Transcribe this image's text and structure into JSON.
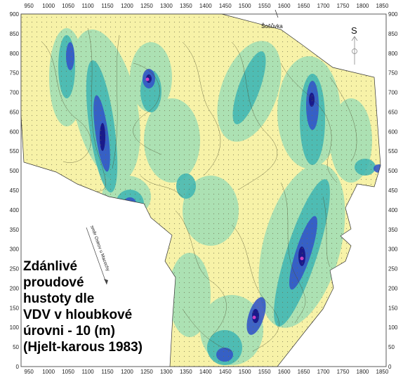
{
  "map": {
    "x_axis_ticks": [
      "950",
      "1000",
      "1050",
      "1100",
      "1150",
      "1200",
      "1250",
      "1300",
      "1350",
      "1400",
      "1450",
      "1500",
      "1550",
      "1600",
      "1650",
      "1700",
      "1750",
      "1800",
      "1850"
    ],
    "y_axis_ticks": [
      "900",
      "850",
      "800",
      "750",
      "700",
      "650",
      "600",
      "550",
      "500",
      "450",
      "400",
      "350",
      "300",
      "250",
      "200",
      "150",
      "100",
      "50",
      "0"
    ],
    "x_range": [
      930,
      1860
    ],
    "y_range": [
      0,
      900
    ],
    "village_label": "Šošůvka",
    "direction_label": "směr Ostrov u Macochy",
    "compass_letter": "S",
    "caption_lines": [
      "Zdánlivé",
      "proudové",
      "hustoty dle",
      "VDV v hloubkové",
      "úrovni  - 10 (m)",
      "(Hjelt-karous 1983)"
    ],
    "colors": {
      "fill_low": "#f7f2a8",
      "fill_mid": "#a8e0b4",
      "fill_teal": "#44b8b4",
      "fill_blue": "#3456c8",
      "fill_deep": "#1a1a8a",
      "fill_peak": "#d040c8",
      "contour": "#4a4a2a"
    }
  }
}
